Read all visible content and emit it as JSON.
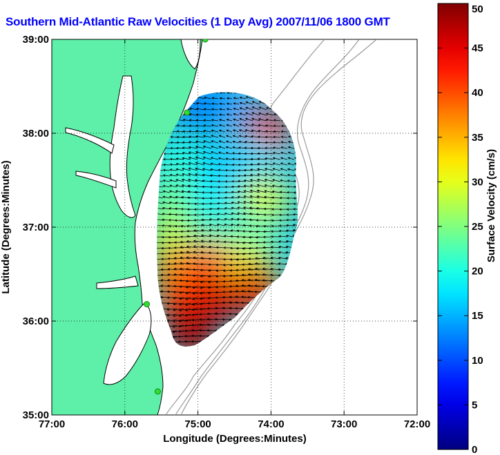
{
  "chart_data": {
    "type": "heatmap",
    "title": "Southern Mid-Atlantic Raw Velocities (1 Day Avg) 2007/11/06 1800 GMT",
    "xlabel": "Longitude (Degrees:Minutes)",
    "ylabel": "Latitude (Degrees:Minutes)",
    "colorbar_label": "Surface Velocity (cm/s)",
    "xlim": [
      -77,
      -72
    ],
    "ylim": [
      35,
      39
    ],
    "x_ticks": [
      {
        "value": -77,
        "label": "77:00"
      },
      {
        "value": -76,
        "label": "76:00"
      },
      {
        "value": -75,
        "label": "75:00"
      },
      {
        "value": -74,
        "label": "74:00"
      },
      {
        "value": -73,
        "label": "73:00"
      },
      {
        "value": -72,
        "label": "72:00"
      }
    ],
    "y_ticks": [
      {
        "value": 35,
        "label": "35:00"
      },
      {
        "value": 36,
        "label": "36:00"
      },
      {
        "value": 37,
        "label": "37:00"
      },
      {
        "value": 38,
        "label": "38:00"
      },
      {
        "value": 39,
        "label": "39:00"
      }
    ],
    "colorbar_ticks": [
      {
        "value": 0,
        "label": "0"
      },
      {
        "value": 5,
        "label": "5"
      },
      {
        "value": 10,
        "label": "10"
      },
      {
        "value": 15,
        "label": "15"
      },
      {
        "value": 20,
        "label": "20"
      },
      {
        "value": 25,
        "label": "25"
      },
      {
        "value": 30,
        "label": "30"
      },
      {
        "value": 35,
        "label": "35"
      },
      {
        "value": 40,
        "label": "40"
      },
      {
        "value": 45,
        "label": "45"
      },
      {
        "value": 50,
        "label": "50"
      }
    ],
    "clim": [
      0,
      50
    ],
    "colormap": "jet",
    "grid": "dotted",
    "colors": {
      "land": "#5ef0a8",
      "title": "#0000ff",
      "coast": "#000000",
      "isobath": "#999999",
      "station": "#33dd33"
    },
    "stations": [
      {
        "lon": -74.9,
        "lat": 39.0
      },
      {
        "lon": -75.15,
        "lat": 38.22
      },
      {
        "lon": -75.7,
        "lat": 36.18
      },
      {
        "lon": -75.55,
        "lat": 35.25
      }
    ],
    "speed_samples": [
      {
        "lon": -75.0,
        "lat": 38.3,
        "v": 12
      },
      {
        "lon": -74.6,
        "lat": 38.3,
        "v": 14
      },
      {
        "lon": -74.05,
        "lat": 38.0,
        "v": 44
      },
      {
        "lon": -74.2,
        "lat": 37.7,
        "v": 17
      },
      {
        "lon": -74.7,
        "lat": 37.7,
        "v": 16
      },
      {
        "lon": -75.25,
        "lat": 37.7,
        "v": 20
      },
      {
        "lon": -75.35,
        "lat": 37.3,
        "v": 24
      },
      {
        "lon": -74.8,
        "lat": 37.3,
        "v": 18
      },
      {
        "lon": -74.1,
        "lat": 37.3,
        "v": 30
      },
      {
        "lon": -75.35,
        "lat": 36.9,
        "v": 28
      },
      {
        "lon": -74.8,
        "lat": 36.9,
        "v": 22
      },
      {
        "lon": -74.2,
        "lat": 36.9,
        "v": 22
      },
      {
        "lon": -75.3,
        "lat": 36.55,
        "v": 37
      },
      {
        "lon": -74.8,
        "lat": 36.6,
        "v": 40
      },
      {
        "lon": -74.3,
        "lat": 36.6,
        "v": 30
      },
      {
        "lon": -75.2,
        "lat": 36.2,
        "v": 42
      },
      {
        "lon": -74.7,
        "lat": 36.25,
        "v": 46
      },
      {
        "lon": -74.2,
        "lat": 36.35,
        "v": 45
      },
      {
        "lon": -75.1,
        "lat": 35.85,
        "v": 48
      }
    ]
  }
}
